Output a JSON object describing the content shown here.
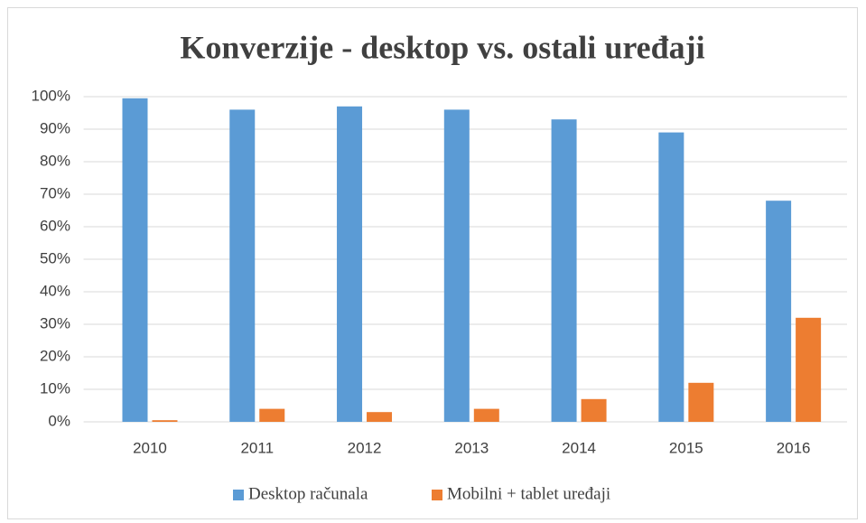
{
  "chart_data": {
    "type": "bar",
    "title": "Konverzije - desktop vs. ostali uređaji",
    "categories": [
      "2010",
      "2011",
      "2012",
      "2013",
      "2014",
      "2015",
      "2016"
    ],
    "series": [
      {
        "name": "Desktop računala",
        "color": "#5b9bd5",
        "values": [
          99.5,
          96,
          97,
          96,
          93,
          89,
          68
        ]
      },
      {
        "name": "Mobilni + tablet uređaji",
        "color": "#ed7d31",
        "values": [
          0.5,
          4,
          3,
          4,
          7,
          12,
          32
        ]
      }
    ],
    "ylim": [
      0,
      100
    ],
    "yticks": [
      {
        "value": 0,
        "label": "0%"
      },
      {
        "value": 10,
        "label": "10%"
      },
      {
        "value": 20,
        "label": "20%"
      },
      {
        "value": 30,
        "label": "30%"
      },
      {
        "value": 40,
        "label": "40%"
      },
      {
        "value": 50,
        "label": "50%"
      },
      {
        "value": 60,
        "label": "60%"
      },
      {
        "value": 70,
        "label": "70%"
      },
      {
        "value": 80,
        "label": "80%"
      },
      {
        "value": 90,
        "label": "90%"
      },
      {
        "value": 100,
        "label": "100%"
      }
    ],
    "grid": true,
    "legend": "bottom"
  }
}
